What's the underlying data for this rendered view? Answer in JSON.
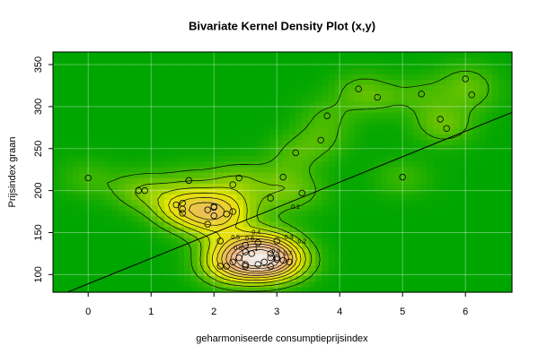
{
  "chart_data": {
    "type": "kde-scatter",
    "title": "Bivariate Kernel Density Plot (x,y)",
    "x_label": "geharmoniseerde consumptieprijsindex",
    "y_label": "Prijsindex graan",
    "xlim": [
      -0.56,
      6.74
    ],
    "ylim": [
      79,
      365
    ],
    "xticks": [
      0,
      1,
      2,
      3,
      4,
      5,
      6
    ],
    "yticks": [
      100,
      150,
      200,
      250,
      300,
      350
    ],
    "grid": true,
    "colors": [
      "#00a600",
      "#e6e600",
      "#ecb176",
      "#f2f2f2"
    ],
    "contour_levels": [
      0.1,
      0.2,
      0.3,
      0.4,
      0.5,
      0.6,
      0.7,
      0.8,
      0.9,
      1
    ],
    "points": {
      "color": "#000000",
      "x": [
        0,
        0.8,
        0.9,
        1.4,
        1.5,
        1.5,
        1.5,
        1.6,
        1.9,
        2,
        2,
        2,
        1.9,
        2.1,
        2.2,
        2.3,
        2.3,
        2.4,
        2.1,
        2.2,
        2.3,
        2.4,
        2.5,
        2.7,
        2.6,
        2.9,
        2.9,
        3,
        3,
        3,
        3.1,
        3.2,
        3.3,
        3.4,
        3.7,
        3.8,
        4.3,
        4.6,
        5,
        5.3,
        5.6,
        5.7,
        6,
        6.1,
        2.5,
        2.5,
        2.9,
        2.9,
        2.8,
        2.5,
        2.7,
        3.1
      ],
      "y": [
        215,
        200,
        200,
        183,
        185,
        173,
        178,
        212,
        177,
        180,
        181,
        170,
        160,
        140,
        172,
        207,
        175,
        215,
        110,
        110,
        115,
        120,
        135,
        138,
        125,
        191,
        120,
        140,
        120,
        118,
        216,
        115,
        245,
        197,
        260,
        289,
        321,
        311,
        216,
        315,
        285,
        274,
        333,
        314,
        110,
        112,
        110,
        125,
        115,
        127,
        112,
        117
      ]
    },
    "regression_line": {
      "color": "#000000",
      "x": [
        -0.33,
        6.74
      ],
      "y": [
        79,
        293
      ]
    }
  }
}
